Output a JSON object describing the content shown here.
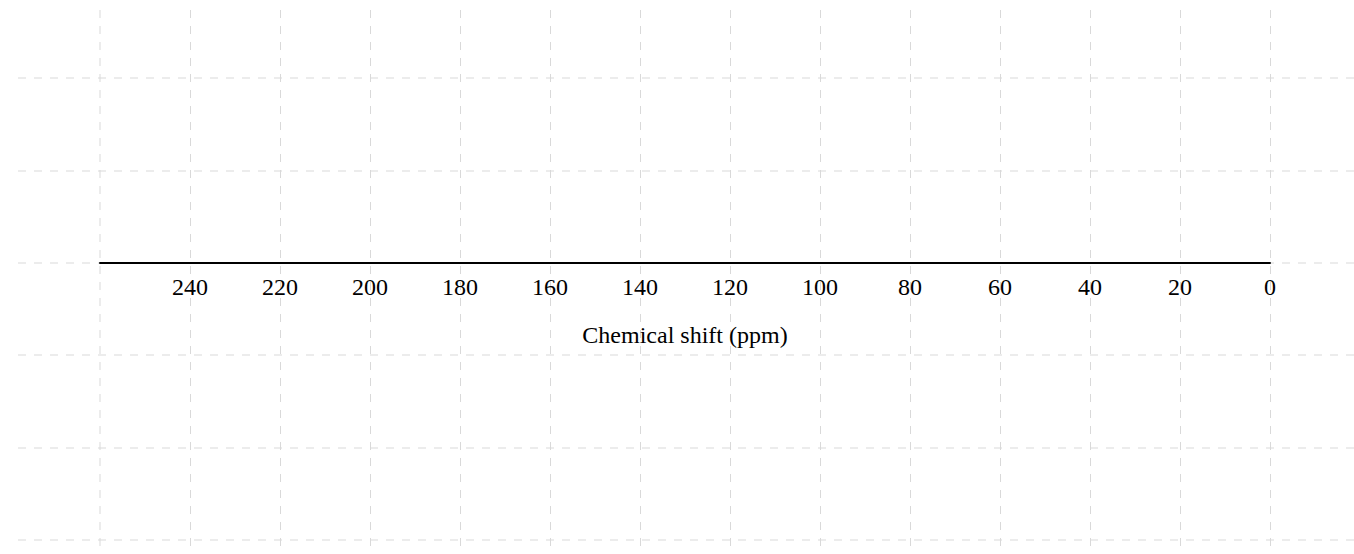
{
  "chart_data": {
    "type": "line",
    "x_label": "Chemical shift (ppm)",
    "xlim": [
      260,
      0
    ],
    "xticks": [
      240,
      220,
      200,
      180,
      160,
      140,
      120,
      100,
      80,
      60,
      40,
      20,
      0
    ],
    "grid": true,
    "tick_labels": "x"
  }
}
